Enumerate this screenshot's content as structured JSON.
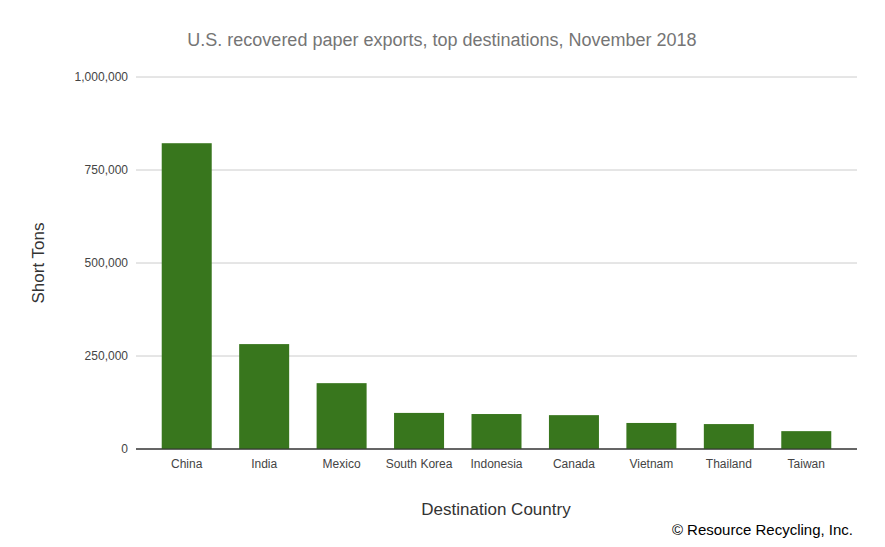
{
  "chart_data": {
    "type": "bar",
    "title": "U.S. recovered paper exports, top destinations, November 2018",
    "x_label": "Destination Country",
    "y_label": "Short Tons",
    "annotations": [
      "© Resource Recycling, Inc."
    ],
    "categories": [
      "China",
      "India",
      "Mexico",
      "South Korea",
      "Indonesia",
      "Canada",
      "Vietnam",
      "Thailand",
      "Taiwan"
    ],
    "values": [
      822000,
      282000,
      177000,
      97000,
      94000,
      91000,
      70000,
      67000,
      48000
    ],
    "color": "#38761d",
    "ylim": [
      0,
      1000000
    ],
    "yticks": [
      0,
      {
        "value": 250000,
        "label": "250,000"
      },
      {
        "value": 500000,
        "label": "500,000"
      },
      {
        "value": 750000,
        "label": "750,000"
      },
      {
        "value": 1000000,
        "label": "1,000,000"
      }
    ],
    "grid": true
  }
}
